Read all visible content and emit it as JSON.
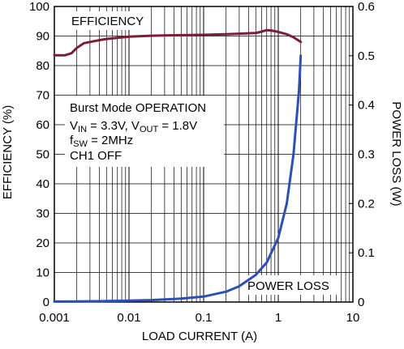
{
  "chart_data": {
    "type": "line",
    "title": "",
    "xlabel": "LOAD CURRENT (A)",
    "ylabel_left": "EFFICIENCY (%)",
    "ylabel_right": "POWER LOSS (W)",
    "x_scale": "log",
    "xlim": [
      0.001,
      10
    ],
    "ylim_left": [
      0,
      100
    ],
    "ylim_right": [
      0,
      0.6
    ],
    "grid": true,
    "x_tick_labels": [
      "0.001",
      "0.01",
      "0.1",
      "1",
      "10"
    ],
    "y_left_tick_labels": [
      "0",
      "10",
      "20",
      "30",
      "40",
      "50",
      "60",
      "70",
      "80",
      "90",
      "100"
    ],
    "y_right_tick_labels": [
      "0",
      "0.1",
      "0.2",
      "0.3",
      "0.4",
      "0.5",
      "0.6"
    ],
    "series": [
      {
        "name": "EFFICIENCY",
        "axis": "left",
        "color": "#7a1f33",
        "x": [
          0.001,
          0.0014,
          0.0017,
          0.002,
          0.0025,
          0.003,
          0.004,
          0.005,
          0.007,
          0.01,
          0.02,
          0.03,
          0.05,
          0.1,
          0.2,
          0.3,
          0.5,
          0.6,
          0.7,
          0.8,
          1.0,
          1.3,
          1.6,
          2.0
        ],
        "y": [
          83.5,
          83.5,
          84.2,
          86.0,
          87.6,
          88.0,
          88.6,
          89.0,
          89.4,
          89.8,
          90.1,
          90.2,
          90.3,
          90.4,
          90.6,
          90.8,
          91.0,
          91.5,
          92.0,
          91.9,
          91.4,
          90.6,
          89.6,
          88.0
        ]
      },
      {
        "name": "POWER LOSS",
        "axis": "right",
        "color": "#2e4fb3",
        "x": [
          0.001,
          0.002,
          0.005,
          0.01,
          0.02,
          0.05,
          0.1,
          0.2,
          0.3,
          0.5,
          0.7,
          1.0,
          1.3,
          1.6,
          1.9,
          2.0
        ],
        "y": [
          0.001,
          0.0013,
          0.002,
          0.003,
          0.004,
          0.007,
          0.011,
          0.021,
          0.032,
          0.055,
          0.08,
          0.13,
          0.2,
          0.3,
          0.43,
          0.5
        ]
      }
    ],
    "annotations": {
      "efficiency_label": "EFFICIENCY",
      "power_loss_label": "POWER LOSS",
      "conditions": {
        "line1": "Burst Mode OPERATION",
        "line2_v": "V",
        "line2_in_sub": "IN",
        "line2_eq1": " = 3.3V, V",
        "line2_out_sub": "OUT",
        "line2_eq2": " = 1.8V",
        "line3_f": "f",
        "line3_sub": "SW",
        "line3_eq": " = 2MHz",
        "line4": "CH1 OFF"
      }
    }
  }
}
